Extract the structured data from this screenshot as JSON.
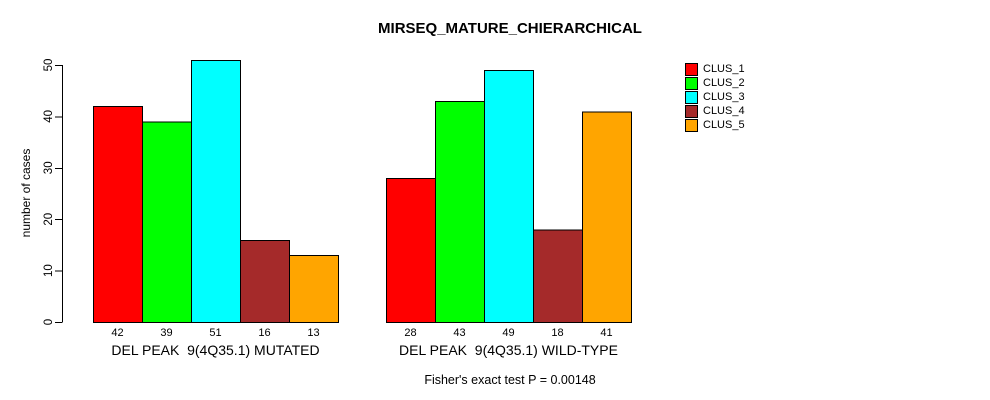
{
  "chart_data": {
    "type": "bar",
    "title": "MIRSEQ_MATURE_CHIERARCHICAL",
    "ylabel": "number of cases",
    "xlabel": "",
    "ylim": [
      0,
      51
    ],
    "yticks": [
      0,
      10,
      20,
      30,
      40,
      50
    ],
    "grid": false,
    "legend_position": "right",
    "bar_value_labels_shown": true,
    "series": [
      {
        "name": "CLUS_1",
        "color": "#FF0000"
      },
      {
        "name": "CLUS_2",
        "color": "#00FF00"
      },
      {
        "name": "CLUS_3",
        "color": "#00FFFF"
      },
      {
        "name": "CLUS_4",
        "color": "#A52A2A"
      },
      {
        "name": "CLUS_5",
        "color": "#FFA500"
      }
    ],
    "groups": [
      {
        "label": "DEL PEAK  9(4Q35.1) MUTATED",
        "values": [
          42,
          39,
          51,
          16,
          13
        ]
      },
      {
        "label": "DEL PEAK  9(4Q35.1) WILD-TYPE",
        "values": [
          28,
          43,
          49,
          18,
          41
        ]
      }
    ],
    "annotation": "Fisher's exact test P = 0.00148",
    "axis_color": "#000000",
    "bar_border_color": "#000000",
    "background_color": "#FFFFFF"
  }
}
